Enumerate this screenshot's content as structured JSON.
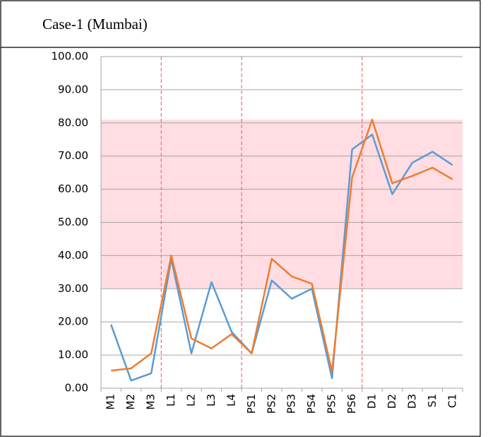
{
  "chart_data": {
    "type": "line",
    "title": "Case-1 (Mumbai)",
    "categories": [
      "M1",
      "M2",
      "M3",
      "L1",
      "L2",
      "L3",
      "L4",
      "PS1",
      "PS2",
      "PS3",
      "PS4",
      "PS5",
      "PS6",
      "D1",
      "D2",
      "D3",
      "S1",
      "C1"
    ],
    "series": [
      {
        "color": "#5b9bd5",
        "values": [
          19.2,
          2.3,
          4.5,
          39,
          10.5,
          32,
          17,
          10.5,
          32.5,
          27,
          30,
          3,
          72,
          76.5,
          58.5,
          68,
          71.3,
          67.3
        ]
      },
      {
        "color": "#ed7d31",
        "values": [
          5.3,
          6,
          10.5,
          40,
          15,
          12,
          16.3,
          10.5,
          39,
          33.7,
          31.5,
          5,
          63.5,
          81,
          61.8,
          64,
          66.5,
          63
        ]
      }
    ],
    "ylim": [
      0,
      100
    ],
    "yticks": [
      {
        "value": 0,
        "label": "0.00"
      },
      {
        "value": 10,
        "label": "10.00"
      },
      {
        "value": 20,
        "label": "20.00"
      },
      {
        "value": 30,
        "label": "30.00"
      },
      {
        "value": 40,
        "label": "40.00"
      },
      {
        "value": 50,
        "label": "50.00"
      },
      {
        "value": 60,
        "label": "60.00"
      },
      {
        "value": 70,
        "label": "70.00"
      },
      {
        "value": 80,
        "label": "80.00"
      },
      {
        "value": 90,
        "label": "90.00"
      },
      {
        "value": 100,
        "label": "100.00"
      }
    ],
    "grid": true,
    "shaded_range": [
      30,
      81
    ],
    "shaded_color": "#ffdde2",
    "dividers": [
      3,
      7,
      13
    ],
    "divider_color": "#f07070"
  }
}
